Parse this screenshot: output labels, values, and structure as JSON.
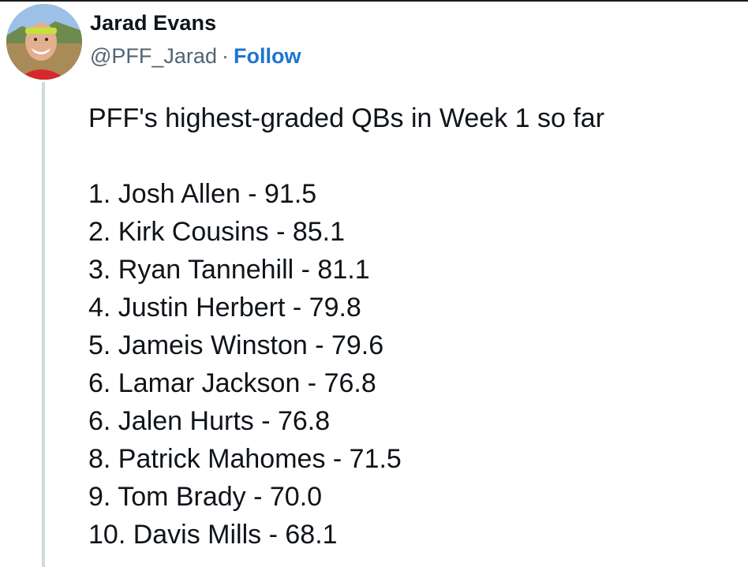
{
  "author": {
    "display_name": "Jarad Evans",
    "handle": "@PFF_Jarad",
    "separator": "·",
    "follow_label": "Follow",
    "avatar_icon": "profile-photo"
  },
  "tweet": {
    "headline": "PFF's highest-graded QBs in Week 1 so far",
    "items": [
      "1. Josh Allen - 91.5",
      "2. Kirk Cousins - 85.1",
      "3. Ryan Tannehill - 81.1",
      "4. Justin Herbert - 79.8",
      "5. Jameis Winston - 79.6",
      "6. Lamar Jackson - 76.8",
      "6. Jalen Hurts - 76.8",
      "8. Patrick Mahomes - 71.5",
      "9. Tom Brady - 70.0",
      "10. Davis Mills - 68.1"
    ]
  },
  "colors": {
    "text": "#0f1419",
    "muted": "#536471",
    "link": "#1d75d0",
    "thread_line": "#cfd9de"
  }
}
